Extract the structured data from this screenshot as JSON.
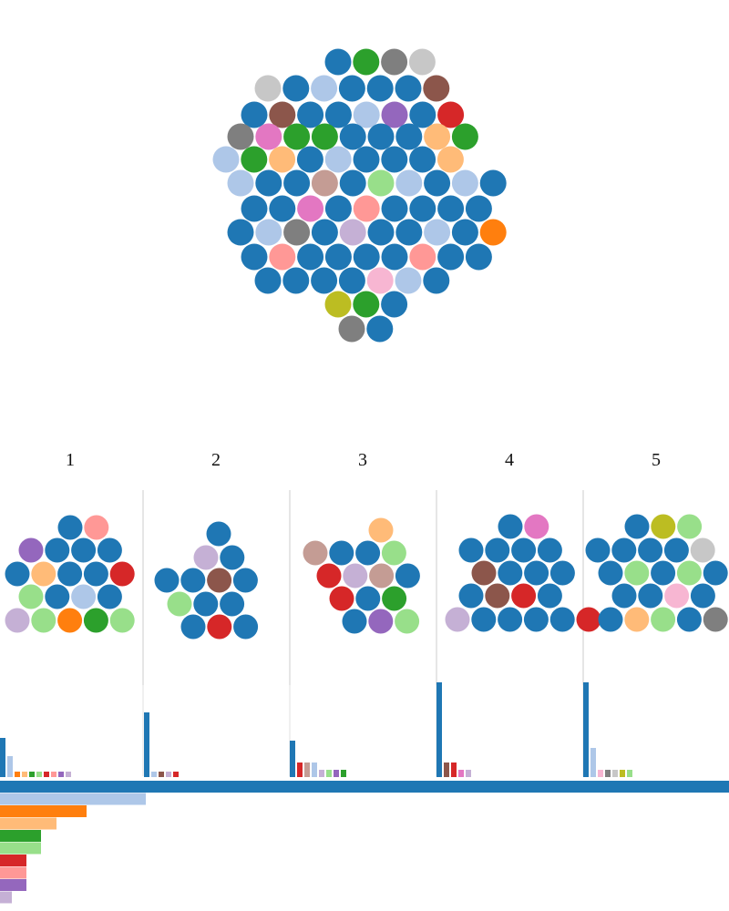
{
  "palette": {
    "blue": "#1f77b4",
    "lightblue": "#aec7e8",
    "orange": "#ff7f0e",
    "lightorange": "#ffbb78",
    "green": "#2ca02c",
    "lightgreen": "#98df8a",
    "red": "#d62728",
    "pink": "#ff9896",
    "purple": "#9467bd",
    "lavender": "#c5b0d5",
    "brown": "#8c564b",
    "tan": "#c49c94",
    "magenta": "#e377c2",
    "lightpink": "#f7b6d2",
    "gray": "#7f7f7f",
    "lightgray": "#c7c7c7",
    "olive": "#bcbd22"
  },
  "chart_data": {
    "type": "bubble-cluster",
    "cluster": {
      "rows": [
        [
          "blue",
          "green",
          "gray",
          "lightgray"
        ],
        [
          "lightgray",
          "blue",
          "lightblue",
          "blue",
          "blue",
          "blue",
          "brown"
        ],
        [
          "blue",
          "brown",
          "blue",
          "blue",
          "lightblue",
          "purple",
          "blue",
          "red"
        ],
        [
          "gray",
          "magenta",
          "green",
          "green",
          "blue",
          "blue",
          "blue",
          "lightorange",
          "green"
        ],
        [
          "lightblue",
          "green",
          "lightorange",
          "blue",
          "lightblue",
          "blue",
          "blue",
          "blue",
          "lightorange"
        ],
        [
          "lightblue",
          "blue",
          "blue",
          "tan",
          "blue",
          "lightgreen",
          "lightblue",
          "blue",
          "lightblue",
          "blue"
        ],
        [
          "blue",
          "blue",
          "magenta",
          "blue",
          "pink",
          "blue",
          "blue",
          "blue",
          "blue"
        ],
        [
          "blue",
          "lightblue",
          "gray",
          "blue",
          "lavender",
          "blue",
          "blue",
          "lightblue",
          "blue",
          "orange"
        ],
        [
          "blue",
          "pink",
          "blue",
          "blue",
          "blue",
          "blue",
          "pink",
          "blue",
          "blue"
        ],
        [
          "blue",
          "blue",
          "blue",
          "blue",
          "lightpink",
          "lightblue",
          "blue"
        ],
        [
          "olive",
          "green",
          "blue"
        ],
        [
          "gray",
          "blue"
        ]
      ]
    },
    "groups": [
      {
        "label": "1",
        "rows": [
          [
            "blue",
            "pink"
          ],
          [
            "purple",
            "blue",
            "blue",
            "blue"
          ],
          [
            "blue",
            "lightorange",
            "blue",
            "blue",
            "red"
          ],
          [
            "lightgreen",
            "blue",
            "lightblue",
            "blue"
          ],
          [
            "lavender",
            "lightgreen",
            "orange",
            "green",
            "lightgreen"
          ]
        ],
        "bars": [
          {
            "color": "blue",
            "value": 43
          },
          {
            "color": "lightblue",
            "value": 23
          },
          {
            "color": "orange",
            "value": 6
          },
          {
            "color": "lightorange",
            "value": 6
          },
          {
            "color": "green",
            "value": 6
          },
          {
            "color": "lightgreen",
            "value": 6
          },
          {
            "color": "red",
            "value": 6
          },
          {
            "color": "pink",
            "value": 6
          },
          {
            "color": "purple",
            "value": 6
          },
          {
            "color": "lavender",
            "value": 6
          }
        ]
      },
      {
        "label": "2",
        "rows": [
          [
            "blue"
          ],
          [
            "lavender",
            "blue"
          ],
          [
            "blue",
            "blue",
            "brown",
            "blue"
          ],
          [
            "lightgreen",
            "blue",
            "blue"
          ],
          [
            "blue",
            "red",
            "blue"
          ]
        ],
        "bars": [
          {
            "color": "blue",
            "value": 71
          },
          {
            "color": "lightblue",
            "value": 6
          },
          {
            "color": "brown",
            "value": 6
          },
          {
            "color": "lavender",
            "value": 6
          },
          {
            "color": "red",
            "value": 6
          }
        ]
      },
      {
        "label": "3",
        "rows": [
          [
            "lightorange"
          ],
          [
            "tan",
            "blue",
            "blue",
            "lightgreen"
          ],
          [
            "red",
            "lavender",
            "tan",
            "blue"
          ],
          [
            "red",
            "blue",
            "green"
          ],
          [
            "blue",
            "purple",
            "lightgreen"
          ]
        ],
        "bars": [
          {
            "color": "blue",
            "value": 40
          },
          {
            "color": "red",
            "value": 16
          },
          {
            "color": "tan",
            "value": 16
          },
          {
            "color": "lightblue",
            "value": 16
          },
          {
            "color": "lavender",
            "value": 8
          },
          {
            "color": "lightgreen",
            "value": 8
          },
          {
            "color": "purple",
            "value": 8
          },
          {
            "color": "green",
            "value": 8
          }
        ]
      },
      {
        "label": "4",
        "rows": [
          [
            "blue",
            "magenta"
          ],
          [
            "blue",
            "blue",
            "blue",
            "blue"
          ],
          [
            "brown",
            "blue",
            "blue",
            "blue"
          ],
          [
            "blue",
            "brown",
            "red",
            "blue"
          ],
          [
            "lavender",
            "blue",
            "blue",
            "blue",
            "blue",
            "red"
          ]
        ],
        "bars": [
          {
            "color": "blue",
            "value": 104
          },
          {
            "color": "brown",
            "value": 16
          },
          {
            "color": "red",
            "value": 16
          },
          {
            "color": "magenta",
            "value": 8
          },
          {
            "color": "lavender",
            "value": 8
          }
        ]
      },
      {
        "label": "5",
        "rows": [
          [
            "blue",
            "olive",
            "lightgreen"
          ],
          [
            "blue",
            "blue",
            "blue",
            "blue",
            "lightgray"
          ],
          [
            "blue",
            "lightgreen",
            "blue",
            "lightgreen",
            "blue"
          ],
          [
            "blue",
            "blue",
            "lightpink",
            "blue"
          ],
          [
            "blue",
            "lightorange",
            "lightgreen",
            "blue",
            "gray"
          ]
        ],
        "bars": [
          {
            "color": "blue",
            "value": 104
          },
          {
            "color": "lightblue",
            "value": 32
          },
          {
            "color": "lightpink",
            "value": 8
          },
          {
            "color": "gray",
            "value": 8
          },
          {
            "color": "lightgray",
            "value": 8
          },
          {
            "color": "olive",
            "value": 8
          },
          {
            "color": "lightgreen",
            "value": 8
          }
        ]
      }
    ],
    "totals": {
      "type": "bar-horizontal",
      "bars": [
        {
          "color": "blue",
          "value": 800
        },
        {
          "color": "lightblue",
          "value": 160
        },
        {
          "color": "orange",
          "value": 95
        },
        {
          "color": "lightorange",
          "value": 62
        },
        {
          "color": "green",
          "value": 45
        },
        {
          "color": "lightgreen",
          "value": 45
        },
        {
          "color": "red",
          "value": 29
        },
        {
          "color": "pink",
          "value": 29
        },
        {
          "color": "purple",
          "value": 29
        },
        {
          "color": "lavender",
          "value": 13
        }
      ]
    }
  }
}
